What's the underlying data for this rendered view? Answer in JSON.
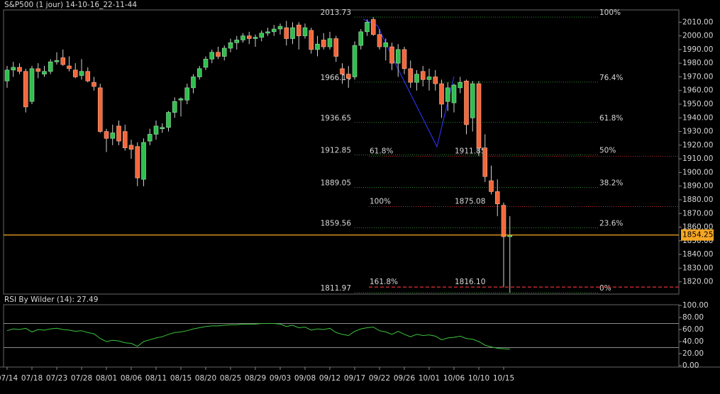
{
  "header": {
    "title": "S&P500 (1 jour) 14-10-16_22-11-44"
  },
  "chart_data": [
    {
      "type": "candlestick",
      "categories": [
        "07/14",
        null,
        null,
        null,
        "07/18",
        null,
        null,
        null,
        "07/23",
        null,
        null,
        null,
        "07/28",
        null,
        null,
        null,
        "08/01",
        null,
        null,
        null,
        "08/06",
        null,
        null,
        null,
        "08/11",
        null,
        null,
        null,
        "08/15",
        null,
        null,
        null,
        "08/20",
        null,
        null,
        null,
        "08/25",
        null,
        null,
        null,
        "08/29",
        null,
        null,
        null,
        "09/03",
        null,
        null,
        null,
        "09/08",
        null,
        null,
        null,
        "09/12",
        null,
        null,
        null,
        "09/17",
        null,
        null,
        null,
        "09/22",
        null,
        null,
        null,
        "09/26",
        null,
        null,
        null,
        "10/01",
        null,
        null,
        null,
        "10/06",
        null,
        null,
        null,
        "10/10",
        null,
        null,
        null,
        "10/15",
        null
      ],
      "open": [
        1967,
        1975,
        1977,
        1974,
        1952,
        1976,
        1972,
        1974,
        1981,
        1984,
        1978,
        1975,
        1971,
        1974,
        1966,
        1962,
        1930,
        1925,
        1934,
        1930,
        1920,
        1919,
        1895,
        1923,
        1928,
        1932,
        1933,
        1944,
        1953,
        1953,
        1962,
        1970,
        1977,
        1983,
        1988,
        1985,
        1991,
        1995,
        1997,
        2000,
        1998,
        1999,
        2002,
        2003,
        2005,
        2006,
        1998,
        2008,
        2000,
        2004,
        1990,
        1997,
        1992,
        1998,
        1976,
        1972,
        1970,
        1993,
        2003,
        2012,
        2001,
        1992,
        1992,
        1980,
        1990,
        1976,
        1966,
        1974,
        1968,
        1970,
        1965,
        1952,
        1951,
        1962,
        1967,
        1940,
        1965,
        1918,
        1894,
        1886,
        1876,
        1853
      ],
      "high": [
        1978,
        1981,
        1980,
        1976,
        1978,
        1980,
        1978,
        1983,
        1988,
        1990,
        1985,
        1980,
        1983,
        1977,
        1970,
        1965,
        1932,
        1935,
        1938,
        1935,
        1924,
        1922,
        1925,
        1932,
        1938,
        1936,
        1945,
        1955,
        1955,
        1965,
        1972,
        1978,
        1985,
        1990,
        1992,
        1993,
        1998,
        2000,
        2002,
        2003,
        2001,
        2004,
        2006,
        2008,
        2009,
        2011,
        2010,
        2010,
        2009,
        2006,
        2000,
        2002,
        2003,
        2000,
        1980,
        1978,
        1996,
        2005,
        2012,
        2013.73,
        2005,
        1998,
        1995,
        1994,
        1992,
        1982,
        1975,
        1978,
        1976,
        1975,
        1968,
        1966,
        1965,
        1970,
        1968,
        1967,
        1967,
        1928,
        1905,
        1895,
        1878,
        1868
      ],
      "low": [
        1962,
        1970,
        1972,
        1944,
        1950,
        1969,
        1970,
        1972,
        1979,
        1978,
        1974,
        1969,
        1968,
        1966,
        1960,
        1929,
        1915,
        1920,
        1920,
        1916,
        1910,
        1890,
        1890,
        1920,
        1924,
        1929,
        1930,
        1940,
        1941,
        1950,
        1958,
        1968,
        1975,
        1980,
        1983,
        1982,
        1988,
        1990,
        1995,
        1994,
        1992,
        1996,
        2000,
        2000,
        2001,
        1993,
        1994,
        1990,
        1998,
        1987,
        1985,
        1990,
        1990,
        1981,
        1965,
        1962,
        1968,
        1990,
        2000,
        2000,
        1990,
        1982,
        1975,
        1970,
        1972,
        1962,
        1960,
        1963,
        1960,
        1960,
        1940,
        1945,
        1944,
        1958,
        1928,
        1930,
        1912,
        1893,
        1884,
        1868,
        1816,
        1811.97
      ],
      "close": [
        1975,
        1977,
        1974,
        1948,
        1976,
        1974,
        1974,
        1981,
        1982,
        1979,
        1976,
        1970,
        1974,
        1967,
        1963,
        1930,
        1925,
        1929,
        1923,
        1918,
        1917,
        1896,
        1922,
        1928,
        1934,
        1933,
        1944,
        1952,
        1954,
        1962,
        1970,
        1976,
        1983,
        1988,
        1985,
        1991,
        1995,
        1997,
        2000,
        1998,
        1999,
        2002,
        2003,
        2005,
        2007,
        1998,
        2006,
        2000,
        2006,
        1990,
        1994,
        1992,
        1998,
        1985,
        1972,
        1969,
        1993,
        2003,
        2010,
        2001,
        1992,
        1995,
        1980,
        1990,
        1976,
        1966,
        1972,
        1968,
        1970,
        1965,
        1950,
        1962,
        1964,
        1966,
        1935,
        1965,
        1918,
        1897,
        1886,
        1877,
        1853,
        1854.25
      ],
      "up_color": "#2fbf4f",
      "down_color": "#f2683c",
      "wick_color": "#cfcfcf",
      "ylim": [
        1811,
        2019
      ],
      "yticks": [
        {
          "value": 1820,
          "label": "1820.00"
        },
        {
          "value": 1830,
          "label": "1830.00"
        },
        {
          "value": 1840,
          "label": "1840.00"
        },
        {
          "value": 1850,
          "label": "1850.00"
        },
        {
          "value": 1860,
          "label": "1860.00"
        },
        {
          "value": 1870,
          "label": "1870.00"
        },
        {
          "value": 1880,
          "label": "1880.00"
        },
        {
          "value": 1890,
          "label": "1890.00"
        },
        {
          "value": 1900,
          "label": "1900.00"
        },
        {
          "value": 1910,
          "label": "1910.00"
        },
        {
          "value": 1920,
          "label": "1920.00"
        },
        {
          "value": 1930,
          "label": "1930.00"
        },
        {
          "value": 1940,
          "label": "1940.00"
        },
        {
          "value": 1950,
          "label": "1950.00"
        },
        {
          "value": 1960,
          "label": "1960.00"
        },
        {
          "value": 1970,
          "label": "1970.00"
        },
        {
          "value": 1980,
          "label": "1980.00"
        },
        {
          "value": 1990,
          "label": "1990.00"
        },
        {
          "value": 2000,
          "label": "2000.00"
        },
        {
          "value": 2010,
          "label": "2010.00"
        }
      ],
      "last_price": 1854.25,
      "last_price_color": "#f5a623",
      "fib_retracement": {
        "color": "#2e8b2e",
        "levels": [
          {
            "price": 2013.73,
            "label": "100%"
          },
          {
            "price": 1966.14,
            "label": "76.4%"
          },
          {
            "price": 1936.65,
            "label": "61.8%"
          },
          {
            "price": 1912.85,
            "label": "50%"
          },
          {
            "price": 1889.05,
            "label": "38.2%"
          },
          {
            "price": 1859.56,
            "label": "23.6%"
          },
          {
            "price": 1811.97,
            "label": "0%"
          }
        ]
      },
      "fib_extension": {
        "color": "#c0282d",
        "levels": [
          {
            "ratio": "61.8%",
            "price": 1911.85
          },
          {
            "ratio": "100%",
            "price": 1875.08
          },
          {
            "ratio": "161.8%",
            "price": 1816.1,
            "price_label": "1816.10"
          }
        ]
      }
    },
    {
      "type": "line",
      "title": "RSI By Wilder (14): 27.49",
      "color": "#3cc43c",
      "values": [
        58,
        61,
        60,
        62,
        56,
        60,
        59,
        61,
        62,
        60,
        59,
        57,
        58,
        55,
        53,
        45,
        40,
        42,
        41,
        38,
        37,
        32,
        40,
        43,
        46,
        48,
        52,
        55,
        56,
        58,
        61,
        63,
        65,
        66,
        66,
        67,
        68,
        68,
        69,
        69,
        69,
        70,
        70,
        70,
        69,
        65,
        67,
        63,
        64,
        59,
        61,
        60,
        62,
        55,
        52,
        50,
        57,
        61,
        63,
        64,
        58,
        56,
        52,
        57,
        52,
        48,
        52,
        50,
        51,
        49,
        43,
        46,
        47,
        49,
        45,
        44,
        40,
        34,
        31,
        29,
        28,
        27.49
      ],
      "ylim": [
        0,
        100
      ],
      "yticks": [
        {
          "value": 0,
          "label": "0.00"
        },
        {
          "value": 20,
          "label": "20.00"
        },
        {
          "value": 40,
          "label": "40.00"
        },
        {
          "value": 60,
          "label": "60.00"
        },
        {
          "value": 80,
          "label": "80.00"
        },
        {
          "value": 100,
          "label": "100.00"
        }
      ],
      "levels": [
        30,
        70
      ]
    }
  ]
}
